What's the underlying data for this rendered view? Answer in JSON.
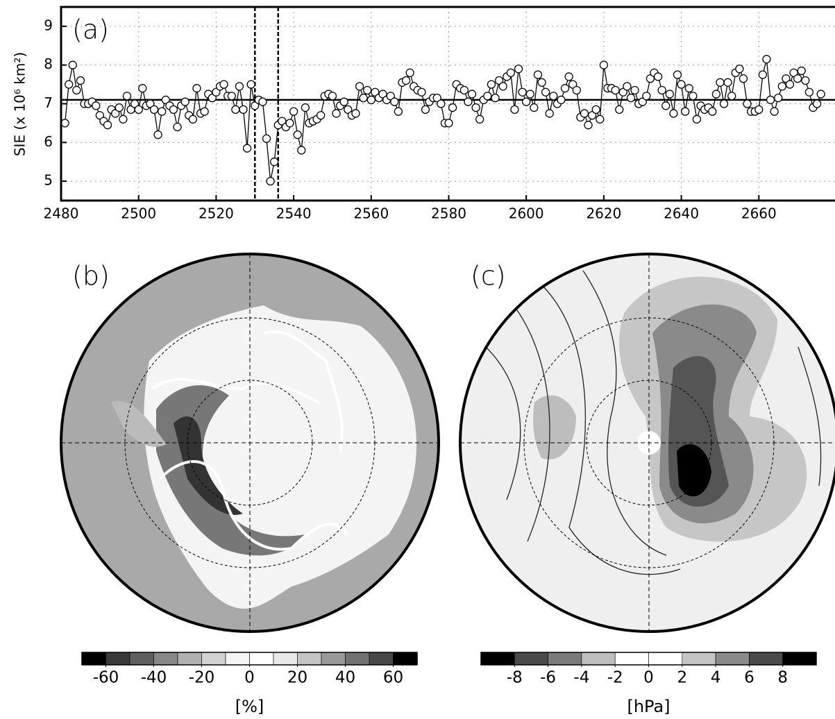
{
  "chart_data": {
    "type": "line",
    "ylabel": "SIE (x 10⁶ km²)",
    "annotation": "(a)",
    "color": "#000000",
    "xlim": [
      2480,
      2680
    ],
    "ylim": [
      4.5,
      9.5
    ],
    "xticks": [
      2480,
      2500,
      2520,
      2540,
      2560,
      2580,
      2600,
      2620,
      2640,
      2660
    ],
    "yticks": [
      5,
      6,
      7,
      8,
      9
    ],
    "grid": true,
    "hline": 7.1,
    "vlines": [
      2530,
      2536
    ],
    "x": [
      2481,
      2482,
      2483,
      2484,
      2485,
      2486,
      2487,
      2488,
      2489,
      2490,
      2491,
      2492,
      2493,
      2494,
      2495,
      2496,
      2497,
      2498,
      2499,
      2500,
      2501,
      2502,
      2503,
      2504,
      2505,
      2506,
      2507,
      2508,
      2509,
      2510,
      2511,
      2512,
      2513,
      2514,
      2515,
      2516,
      2517,
      2518,
      2519,
      2520,
      2521,
      2522,
      2523,
      2524,
      2525,
      2526,
      2527,
      2528,
      2529,
      2530,
      2531,
      2532,
      2533,
      2534,
      2535,
      2536,
      2537,
      2538,
      2539,
      2540,
      2541,
      2542,
      2543,
      2544,
      2545,
      2546,
      2547,
      2548,
      2549,
      2550,
      2551,
      2552,
      2553,
      2554,
      2555,
      2556,
      2557,
      2558,
      2559,
      2560,
      2561,
      2562,
      2563,
      2564,
      2565,
      2566,
      2567,
      2568,
      2569,
      2570,
      2571,
      2572,
      2573,
      2574,
      2575,
      2576,
      2577,
      2578,
      2579,
      2580,
      2581,
      2582,
      2583,
      2584,
      2585,
      2586,
      2587,
      2588,
      2589,
      2590,
      2591,
      2592,
      2593,
      2594,
      2595,
      2596,
      2597,
      2598,
      2599,
      2600,
      2601,
      2602,
      2603,
      2604,
      2605,
      2606,
      2607,
      2608,
      2609,
      2610,
      2611,
      2612,
      2613,
      2614,
      2615,
      2616,
      2617,
      2618,
      2619,
      2620,
      2621,
      2622,
      2623,
      2624,
      2625,
      2626,
      2627,
      2628,
      2629,
      2630,
      2631,
      2632,
      2633,
      2634,
      2635,
      2636,
      2637,
      2638,
      2639,
      2640,
      2641,
      2642,
      2643,
      2644,
      2645,
      2646,
      2647,
      2648,
      2649,
      2650,
      2651,
      2652,
      2653,
      2654,
      2655,
      2656,
      2657,
      2658,
      2659,
      2660,
      2661,
      2662,
      2663,
      2664,
      2665,
      2666,
      2667,
      2668,
      2669,
      2670,
      2671,
      2672,
      2673,
      2674,
      2675,
      2676
    ],
    "values": [
      6.5,
      7.5,
      8.0,
      7.35,
      7.6,
      7.0,
      7.0,
      7.05,
      6.95,
      6.7,
      6.55,
      6.45,
      6.85,
      6.75,
      6.9,
      6.6,
      7.2,
      6.85,
      7.0,
      6.85,
      7.4,
      6.95,
      7.0,
      6.85,
      6.2,
      6.8,
      7.1,
      6.95,
      6.85,
      6.4,
      6.95,
      7.05,
      6.7,
      6.6,
      7.4,
      6.75,
      6.8,
      7.25,
      7.15,
      7.3,
      7.45,
      7.5,
      7.2,
      7.2,
      6.85,
      7.45,
      6.85,
      5.85,
      7.5,
      6.95,
      7.1,
      7.05,
      6.1,
      5.0,
      5.5,
      6.45,
      6.55,
      6.4,
      6.5,
      6.8,
      6.2,
      5.8,
      6.9,
      6.5,
      6.55,
      6.6,
      6.7,
      7.2,
      7.25,
      7.2,
      6.75,
      6.95,
      7.05,
      6.85,
      6.7,
      6.75,
      7.45,
      7.15,
      7.35,
      7.1,
      7.3,
      7.15,
      7.25,
      7.1,
      7.2,
      7.05,
      6.8,
      7.55,
      7.6,
      7.8,
      7.45,
      7.35,
      7.3,
      6.85,
      7.05,
      7.15,
      7.15,
      7.0,
      6.5,
      6.5,
      6.9,
      7.5,
      7.4,
      7.35,
      7.05,
      7.25,
      6.9,
      6.6,
      7.1,
      7.2,
      7.5,
      7.15,
      7.6,
      7.45,
      7.7,
      7.8,
      6.85,
      7.9,
      7.3,
      7.05,
      7.25,
      6.9,
      7.75,
      7.55,
      7.3,
      6.75,
      7.2,
      7.0,
      7.1,
      7.4,
      7.7,
      7.5,
      7.35,
      6.65,
      6.75,
      6.45,
      6.7,
      6.85,
      6.6,
      8.0,
      7.4,
      7.4,
      7.35,
      6.85,
      7.3,
      7.45,
      7.15,
      7.35,
      7.0,
      7.05,
      7.2,
      7.65,
      7.8,
      7.7,
      7.35,
      6.95,
      7.25,
      6.75,
      7.75,
      7.5,
      6.8,
      7.4,
      7.2,
      6.6,
      6.95,
      6.85,
      6.9,
      6.8,
      7.25,
      7.55,
      7.0,
      7.55,
      7.2,
      7.8,
      7.9,
      7.65,
      7.0,
      6.8,
      6.8,
      6.85,
      7.75,
      8.15,
      7.1,
      6.8,
      7.15,
      7.45,
      7.65,
      7.5,
      7.8,
      7.65,
      7.85,
      7.6,
      7.3,
      6.9,
      7.0,
      7.25
    ]
  },
  "maps": [
    {
      "annotation": "(b)",
      "colorbar": {
        "lim": [
          -70,
          70
        ],
        "ticks": [
          -60,
          -40,
          -20,
          0,
          20,
          40,
          60
        ],
        "unit": "[%]",
        "colors": [
          "#000000",
          "#3a3a3a",
          "#5e5e5e",
          "#888888",
          "#b0b0b0",
          "#d2d2d2",
          "#f4f4f4",
          "#ffffff",
          "#e8e8e8",
          "#c4c4c4",
          "#999999",
          "#727272",
          "#484848",
          "#000000"
        ]
      }
    },
    {
      "annotation": "(c)",
      "colorbar": {
        "lim": [
          -10,
          10
        ],
        "ticks": [
          -8,
          -6,
          -4,
          -2,
          0,
          2,
          4,
          6,
          8
        ],
        "unit": "[hPa]",
        "colors": [
          "#000000",
          "#4a4a4a",
          "#7a7a7a",
          "#bdbdbd",
          "#ffffff",
          "#ffffff",
          "#c4c4c4",
          "#8a8a8a",
          "#4a4a4a",
          "#000000"
        ]
      }
    }
  ]
}
